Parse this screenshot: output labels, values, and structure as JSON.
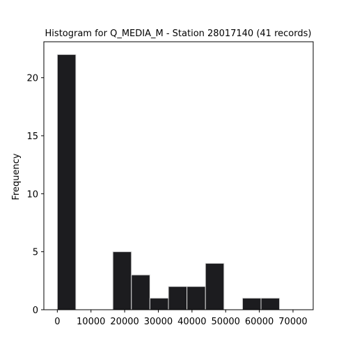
{
  "chart_data": {
    "type": "bar",
    "title": "Histogram for Q_MEDIA_M - Station 28017140 (41 records)",
    "xlabel": "",
    "ylabel": "Frequency",
    "bins": [
      {
        "start": 0,
        "end": 5500,
        "count": 22
      },
      {
        "start": 5500,
        "end": 11000,
        "count": 0
      },
      {
        "start": 11000,
        "end": 16500,
        "count": 0
      },
      {
        "start": 16500,
        "end": 22000,
        "count": 5
      },
      {
        "start": 22000,
        "end": 27500,
        "count": 3
      },
      {
        "start": 27500,
        "end": 33000,
        "count": 1
      },
      {
        "start": 33000,
        "end": 38500,
        "count": 2
      },
      {
        "start": 38500,
        "end": 44000,
        "count": 2
      },
      {
        "start": 44000,
        "end": 49500,
        "count": 4
      },
      {
        "start": 49500,
        "end": 55000,
        "count": 0
      },
      {
        "start": 55000,
        "end": 60500,
        "count": 1
      },
      {
        "start": 60500,
        "end": 66000,
        "count": 1
      }
    ],
    "xticks": [
      0,
      10000,
      20000,
      30000,
      40000,
      50000,
      60000,
      70000
    ],
    "yticks": [
      0,
      5,
      10,
      15,
      20
    ],
    "xlim": [
      -4000,
      76000
    ],
    "ylim": [
      0,
      23.1
    ],
    "bar_color": "#1c1c1f",
    "edge_color": "#d9d9d9",
    "grid": false
  }
}
